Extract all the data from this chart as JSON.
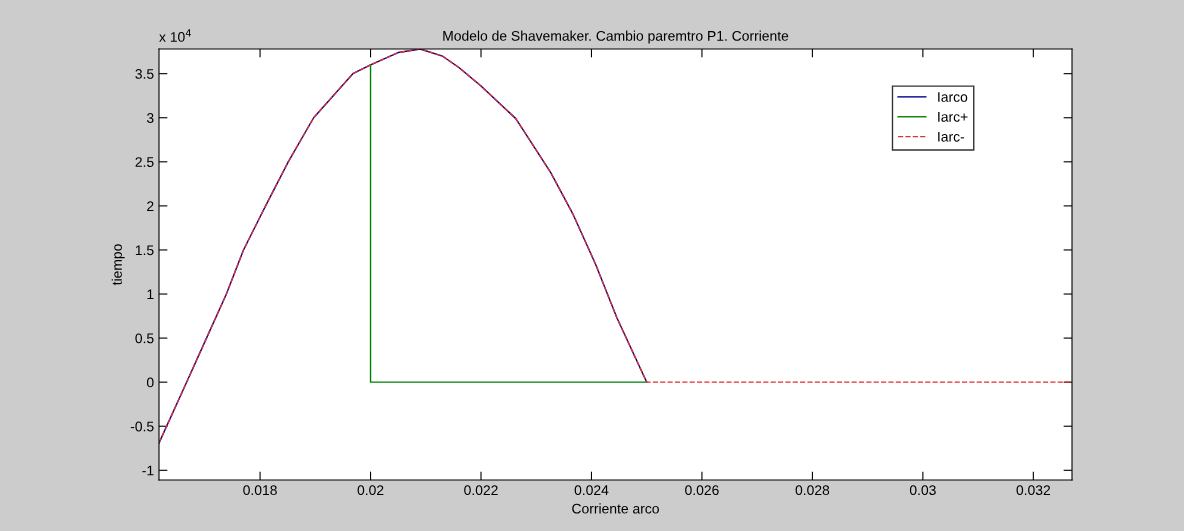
{
  "chart_data": {
    "type": "line",
    "title": "Modelo de Shavemaker. Cambio paremtro P1. Corriente",
    "xlabel": "Corriente arco",
    "ylabel": "tiempo",
    "annotations": [
      "x 10$^{4}$"
    ],
    "xlim": [
      0.01617,
      0.0327
    ],
    "xticks": [
      0.018,
      0.02,
      0.022,
      0.024,
      0.026,
      0.028,
      0.03,
      0.032
    ],
    "ylim": [
      -1.11,
      3.78
    ],
    "yticks": [
      -1,
      -0.5,
      0,
      0.5,
      1,
      1.5,
      2,
      2.5,
      3,
      3.5
    ],
    "grid": false,
    "legend": "top right",
    "marker": "none",
    "series": [
      {
        "name": "Iarco",
        "color": "#00008b",
        "line_style": "solid",
        "x": [
          0.01617,
          0.01667,
          0.01703,
          0.01739,
          0.0177,
          0.0181,
          0.01851,
          0.01897,
          0.01968,
          0.02,
          0.0205,
          0.0209,
          0.0213,
          0.0216,
          0.022,
          0.02263,
          0.02326,
          0.02367,
          0.02408,
          0.02446,
          0.025
        ],
        "values": [
          -0.69,
          0,
          0.5,
          1,
          1.5,
          2,
          2.5,
          3,
          3.5,
          3.6,
          3.74,
          3.78,
          3.7,
          3.57,
          3.36,
          2.99,
          2.38,
          1.9,
          1.33,
          0.73,
          0
        ]
      },
      {
        "name": "Iarc+",
        "color": "#008000",
        "line_style": "solid",
        "x": [
          0.02,
          0.02,
          0.025
        ],
        "values": [
          3.6,
          0,
          0
        ]
      },
      {
        "name": "Iarc-",
        "color": "#e03030",
        "line_style": "dashed",
        "x": [
          0.01617,
          0.01667,
          0.01703,
          0.01739,
          0.0177,
          0.0181,
          0.01851,
          0.01897,
          0.01968,
          0.02,
          0.0205,
          0.0209,
          0.0213,
          0.0216,
          0.022,
          0.02263,
          0.02326,
          0.02367,
          0.02408,
          0.02446,
          0.025,
          0.0327
        ],
        "values": [
          -0.69,
          0,
          0.5,
          1,
          1.5,
          2,
          2.5,
          3,
          3.5,
          3.6,
          3.74,
          3.78,
          3.7,
          3.57,
          3.36,
          2.99,
          2.38,
          1.9,
          1.33,
          0.73,
          0,
          0
        ]
      }
    ]
  }
}
